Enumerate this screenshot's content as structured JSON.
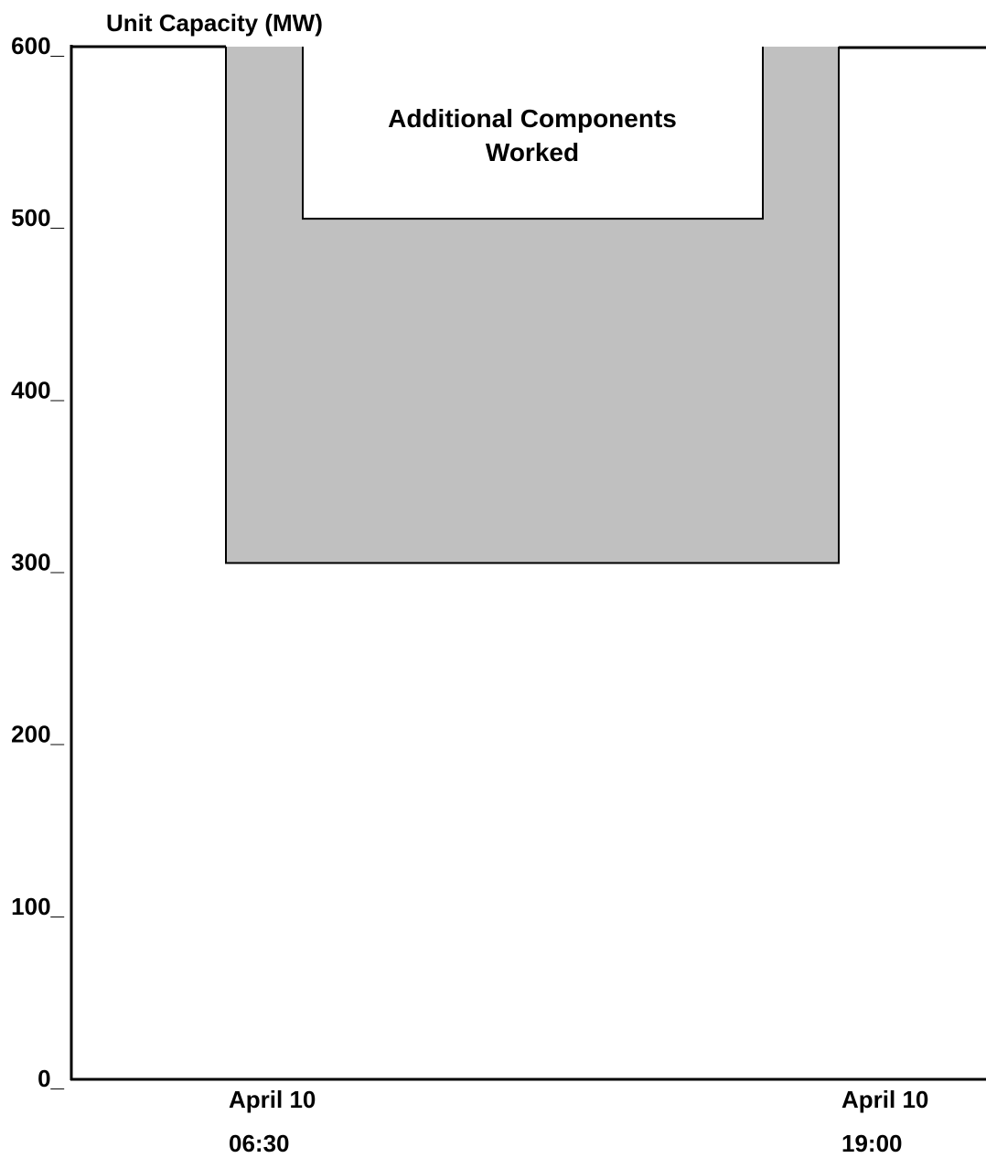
{
  "chart_data": {
    "type": "area",
    "title": "Unit Capacity (MW)",
    "xlabel": "",
    "ylabel": "",
    "ylim": [
      0,
      600
    ],
    "y_ticks": [
      {
        "value": 0,
        "label": "0_"
      },
      {
        "value": 100,
        "label": "100_"
      },
      {
        "value": 200,
        "label": "200_"
      },
      {
        "value": 300,
        "label": "300_"
      },
      {
        "value": 400,
        "label": "400_"
      },
      {
        "value": 500,
        "label": "500_"
      },
      {
        "value": 600,
        "label": "600_"
      }
    ],
    "x_ticks": [
      {
        "date": "April 10",
        "time": "06:30"
      },
      {
        "date": "April 10",
        "time": "19:00"
      }
    ],
    "grid": false,
    "colors": {
      "derated_area": "#c0c0c0",
      "line": "#000000",
      "background": "#ffffff"
    },
    "capacity_step_profile": [
      {
        "from": "start",
        "to": "April 10 06:30",
        "capacity_mw": 600
      },
      {
        "from": "April 10 06:30",
        "to": "April 10 19:00",
        "capacity_mw": 300
      },
      {
        "from": "April 10 19:00",
        "to": "end",
        "capacity_mw": 600
      }
    ],
    "additional_work_capacity_mw": {
      "from": 500,
      "to": 600
    },
    "annotation": {
      "line1": "Additional Components",
      "line2": "Worked"
    }
  }
}
